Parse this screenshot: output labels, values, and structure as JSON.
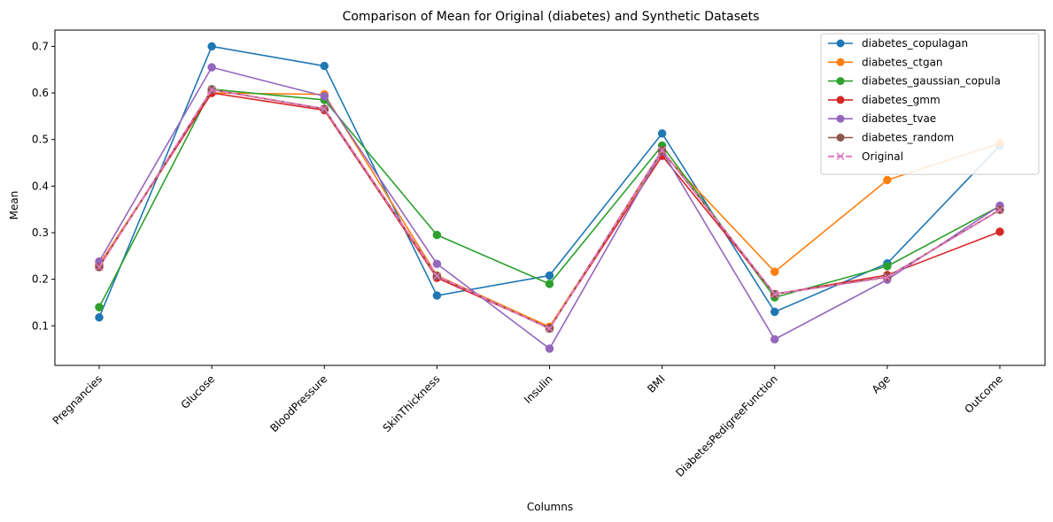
{
  "chart_data": {
    "type": "line",
    "title": "Comparison of Mean for Original (diabetes) and Synthetic Datasets",
    "xlabel": "Columns",
    "ylabel": "Mean",
    "categories": [
      "Pregnancies",
      "Glucose",
      "BloodPressure",
      "SkinThickness",
      "Insulin",
      "BMI",
      "DiabetesPedigreeFunction",
      "Age",
      "Outcome"
    ],
    "ylim": [
      0.015,
      0.735
    ],
    "yticks": [
      "0.1",
      "0.2",
      "0.3",
      "0.4",
      "0.5",
      "0.6",
      "0.7"
    ],
    "grid": false,
    "legend_position": "top-right",
    "series": [
      {
        "name": "diabetes_copulagan",
        "color": "#1f77b4",
        "marker": "circle",
        "dashed": false,
        "values": [
          0.118,
          0.7,
          0.658,
          0.165,
          0.208,
          0.513,
          0.13,
          0.234,
          0.487
        ]
      },
      {
        "name": "diabetes_ctgan",
        "color": "#ff7f0e",
        "marker": "circle",
        "dashed": false,
        "values": [
          0.232,
          0.6,
          0.597,
          0.208,
          0.098,
          0.472,
          0.216,
          0.413,
          0.492
        ]
      },
      {
        "name": "diabetes_gaussian_copula",
        "color": "#2ca02c",
        "marker": "circle",
        "dashed": false,
        "values": [
          0.14,
          0.608,
          0.585,
          0.295,
          0.19,
          0.487,
          0.161,
          0.228,
          0.357
        ]
      },
      {
        "name": "diabetes_gmm",
        "color": "#d62728",
        "marker": "circle",
        "dashed": false,
        "values": [
          0.228,
          0.6,
          0.563,
          0.203,
          0.095,
          0.465,
          0.168,
          0.209,
          0.302
        ]
      },
      {
        "name": "diabetes_tvae",
        "color": "#9467bd",
        "marker": "circle",
        "dashed": false,
        "values": [
          0.238,
          0.655,
          0.593,
          0.233,
          0.051,
          0.475,
          0.071,
          0.199,
          0.358
        ]
      },
      {
        "name": "diabetes_random",
        "color": "#8c564b",
        "marker": "circle",
        "dashed": false,
        "values": [
          0.226,
          0.607,
          0.566,
          0.207,
          0.094,
          0.477,
          0.168,
          0.205,
          0.349
        ]
      },
      {
        "name": "Original",
        "color": "#e377c2",
        "marker": "x",
        "dashed": true,
        "values": [
          0.226,
          0.607,
          0.566,
          0.207,
          0.094,
          0.477,
          0.168,
          0.204,
          0.349
        ]
      }
    ]
  }
}
